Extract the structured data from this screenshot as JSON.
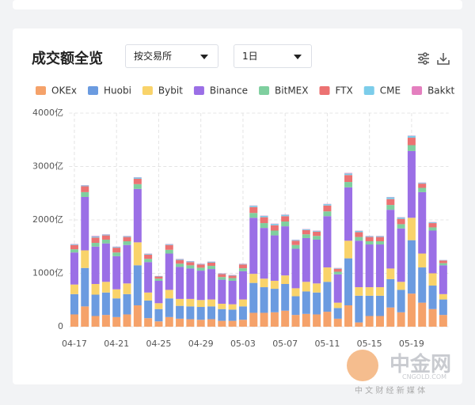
{
  "header": {
    "title": "成交额全览",
    "dropdowns": [
      "按交易所",
      "1日"
    ]
  },
  "watermark": {
    "brand": "中金网",
    "site": "CNGOLD.COM",
    "slogan": "中 文 财 经 新 媒 体"
  },
  "chart_data": {
    "type": "bar",
    "stacked": true,
    "grid": true,
    "categories": [
      "04-17",
      null,
      null,
      null,
      "04-21",
      null,
      null,
      null,
      "04-25",
      null,
      null,
      null,
      "04-29",
      null,
      null,
      null,
      "05-03",
      null,
      null,
      null,
      "05-07",
      null,
      null,
      null,
      "05-11",
      null,
      null,
      null,
      "05-15",
      null,
      null,
      null,
      "05-19",
      null,
      null,
      null
    ],
    "ylim": [
      0,
      4000
    ],
    "yticks": [
      0,
      {
        "value": 1000,
        "label": "1000亿"
      },
      {
        "value": 2000,
        "label": "2000亿"
      },
      {
        "value": 3000,
        "label": "3000亿"
      },
      {
        "value": 4000,
        "label": "4000亿"
      }
    ],
    "series": [
      {
        "name": "OKEx",
        "color": "#f5a26a",
        "values": [
          230,
          380,
          200,
          220,
          180,
          230,
          400,
          160,
          100,
          180,
          150,
          140,
          130,
          140,
          110,
          110,
          130,
          260,
          260,
          270,
          300,
          220,
          240,
          230,
          280,
          150,
          400,
          80,
          200,
          200,
          360,
          270,
          620,
          450,
          330,
          220
        ]
      },
      {
        "name": "Huobi",
        "color": "#6b9be0",
        "values": [
          380,
          720,
          400,
          420,
          350,
          380,
          750,
          330,
          230,
          350,
          240,
          240,
          240,
          240,
          220,
          210,
          250,
          560,
          480,
          440,
          500,
          350,
          420,
          410,
          560,
          200,
          880,
          500,
          380,
          380,
          530,
          420,
          1000,
          660,
          440,
          290
        ]
      },
      {
        "name": "Bybit",
        "color": "#f9d36a",
        "values": [
          180,
          330,
          200,
          200,
          170,
          200,
          430,
          150,
          110,
          160,
          130,
          140,
          130,
          130,
          100,
          100,
          130,
          170,
          160,
          150,
          160,
          150,
          180,
          170,
          270,
          100,
          330,
          160,
          160,
          160,
          200,
          150,
          420,
          260,
          230,
          100
        ]
      },
      {
        "name": "Binance",
        "color": "#9b6fe6",
        "values": [
          600,
          1000,
          700,
          720,
          620,
          720,
          1000,
          570,
          420,
          680,
          600,
          570,
          550,
          570,
          450,
          440,
          530,
          1050,
          950,
          850,
          920,
          740,
          820,
          820,
          960,
          530,
          1000,
          870,
          800,
          800,
          1100,
          1000,
          1250,
          1150,
          800,
          540
        ]
      },
      {
        "name": "BitMEX",
        "color": "#7fcf9f",
        "values": [
          60,
          90,
          70,
          70,
          70,
          70,
          90,
          60,
          40,
          70,
          60,
          60,
          55,
          60,
          50,
          50,
          55,
          90,
          90,
          90,
          90,
          70,
          70,
          70,
          90,
          50,
          100,
          70,
          60,
          60,
          90,
          80,
          110,
          80,
          60,
          40
        ]
      },
      {
        "name": "FTX",
        "color": "#ec7272",
        "values": [
          80,
          110,
          100,
          80,
          90,
          80,
          100,
          80,
          40,
          90,
          70,
          60,
          60,
          60,
          55,
          45,
          70,
          110,
          110,
          100,
          100,
          80,
          80,
          80,
          110,
          55,
          130,
          90,
          80,
          80,
          110,
          100,
          140,
          80,
          80,
          50
        ]
      },
      {
        "name": "CME",
        "color": "#7ccdea",
        "values": [
          15,
          15,
          20,
          15,
          15,
          15,
          25,
          15,
          8,
          15,
          15,
          15,
          10,
          15,
          10,
          10,
          10,
          25,
          25,
          25,
          25,
          15,
          15,
          15,
          25,
          10,
          30,
          25,
          15,
          15,
          35,
          25,
          35,
          15,
          15,
          8
        ]
      },
      {
        "name": "Bakkt",
        "color": "#e47fbf",
        "values": [
          5,
          5,
          10,
          5,
          5,
          5,
          5,
          5,
          2,
          5,
          5,
          5,
          5,
          5,
          5,
          5,
          5,
          5,
          5,
          5,
          5,
          5,
          5,
          5,
          5,
          5,
          10,
          5,
          5,
          5,
          5,
          5,
          5,
          5,
          5,
          2
        ]
      }
    ]
  }
}
